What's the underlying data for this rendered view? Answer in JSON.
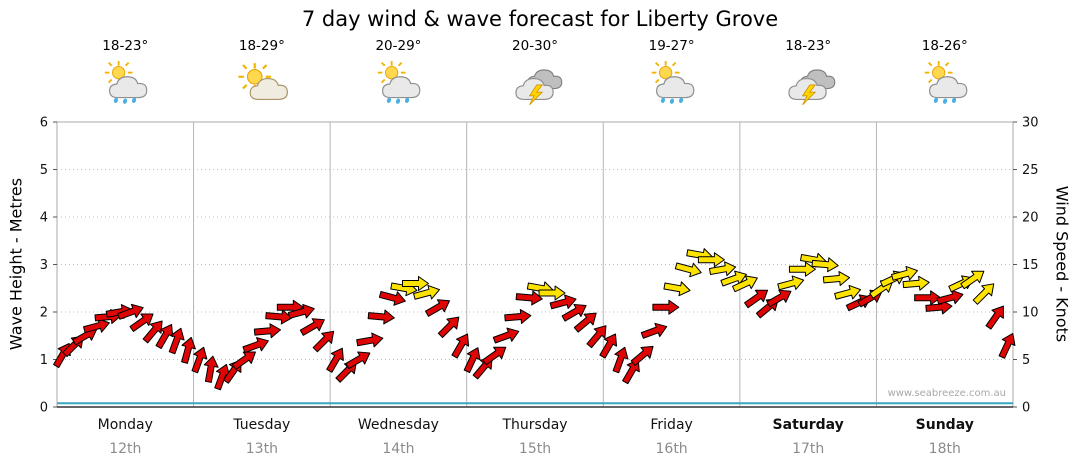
{
  "title": "7 day wind & wave forecast for Liberty Grove",
  "watermark": "www.seabreeze.com.au",
  "axes": {
    "left_title": "Wave Height - Metres",
    "right_title": "Wind Speed - Knots",
    "left_ticks": [
      0,
      1,
      2,
      3,
      4,
      5,
      6
    ],
    "right_ticks": [
      0,
      5,
      10,
      15,
      20,
      25,
      30
    ]
  },
  "days": [
    {
      "name": "Monday",
      "date": "12th",
      "temp": "18-23°",
      "icon": "sun-cloud-rain",
      "bold": false
    },
    {
      "name": "Tuesday",
      "date": "13th",
      "temp": "18-29°",
      "icon": "sun-cloud",
      "bold": false
    },
    {
      "name": "Wednesday",
      "date": "14th",
      "temp": "20-29°",
      "icon": "sun-cloud-rain",
      "bold": false
    },
    {
      "name": "Thursday",
      "date": "15th",
      "temp": "20-30°",
      "icon": "storm",
      "bold": false
    },
    {
      "name": "Friday",
      "date": "16th",
      "temp": "19-27°",
      "icon": "sun-cloud-rain",
      "bold": false
    },
    {
      "name": "Saturday",
      "date": "17th",
      "temp": "18-23°",
      "icon": "storm",
      "bold": true
    },
    {
      "name": "Sunday",
      "date": "18th",
      "temp": "18-26°",
      "icon": "sun-cloud-rain",
      "bold": true
    }
  ],
  "chart_data": {
    "type": "scatter",
    "title": "7 day wind & wave forecast for Liberty Grove",
    "ylabel_left": "Wave Height - Metres",
    "ylabel_right": "Wind Speed - Knots",
    "ylim_left": [
      0,
      6
    ],
    "ylim_right": [
      0,
      30
    ],
    "grid": {
      "horizontal_dotted": [
        1,
        2,
        3,
        4,
        5
      ],
      "vertical_day_separators": true
    },
    "day_labels": [
      "Monday 12th",
      "Tuesday 13th",
      "Wednesday 14th",
      "Thursday 15th",
      "Friday 16th",
      "Saturday 17th",
      "Sunday 18th"
    ],
    "wave_height_m": 0.08,
    "wind": {
      "points_per_day": 12,
      "yellow_from_knots": 12,
      "speeds_knots": [
        [
          5.5,
          6.5,
          7.5,
          8.5,
          9.5,
          10,
          10,
          9,
          8,
          7.5,
          7,
          6
        ],
        [
          5,
          4,
          3.2,
          3.8,
          5,
          6.5,
          8,
          9.5,
          10.5,
          10,
          8.5,
          7
        ],
        [
          5,
          3.8,
          5,
          7,
          9.5,
          11.5,
          12.5,
          13,
          12,
          10.5,
          8.5,
          6.5
        ],
        [
          5,
          4.2,
          5.5,
          7.5,
          9.5,
          11.5,
          12.5,
          12,
          11,
          10,
          9,
          7.5
        ],
        [
          6.5,
          5,
          3.8,
          5.5,
          8,
          10.5,
          12.5,
          14.5,
          16,
          15.5,
          14.5,
          13.5
        ],
        [
          13,
          11.5,
          10.5,
          11.5,
          13,
          14.5,
          15.5,
          15,
          13.5,
          12,
          11,
          11.5
        ],
        [
          12.5,
          13.5,
          14,
          13,
          11.5,
          10.5,
          11.5,
          13,
          13.5,
          12,
          9.5,
          6.5
        ]
      ],
      "directions_deg": [
        [
          30,
          45,
          60,
          75,
          85,
          80,
          70,
          55,
          40,
          30,
          20,
          15
        ],
        [
          20,
          10,
          20,
          35,
          55,
          70,
          85,
          95,
          90,
          75,
          60,
          45
        ],
        [
          30,
          45,
          60,
          80,
          95,
          105,
          100,
          90,
          75,
          60,
          45,
          30
        ],
        [
          25,
          40,
          55,
          70,
          85,
          95,
          100,
          90,
          75,
          60,
          50,
          40
        ],
        [
          30,
          20,
          30,
          50,
          70,
          90,
          100,
          105,
          100,
          90,
          80,
          70
        ],
        [
          65,
          55,
          50,
          60,
          75,
          90,
          100,
          95,
          85,
          75,
          65,
          60
        ],
        [
          55,
          65,
          75,
          85,
          90,
          85,
          75,
          65,
          55,
          45,
          35,
          25
        ]
      ]
    },
    "colors": {
      "arrow_red": "#e00505",
      "arrow_yellow": "#ffe300",
      "arrow_outline": "#000000",
      "wave_line": "#3aa6c0",
      "grid": "#c0c0c0",
      "axis": "#555555"
    }
  }
}
